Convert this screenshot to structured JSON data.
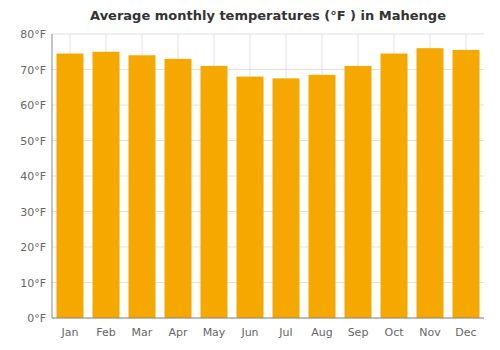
{
  "chart_data": {
    "type": "bar",
    "title": "Average monthly temperatures (°F ) in Mahenge",
    "categories": [
      "Jan",
      "Feb",
      "Mar",
      "Apr",
      "May",
      "Jun",
      "Jul",
      "Aug",
      "Sep",
      "Oct",
      "Nov",
      "Dec"
    ],
    "values": [
      74.5,
      75.0,
      74.0,
      73.0,
      71.0,
      68.0,
      67.5,
      68.5,
      71.0,
      74.5,
      76.0,
      75.5
    ],
    "color": "#F5A800",
    "ylim": [
      0,
      80
    ],
    "yticks": [
      {
        "value": 0,
        "label": "0°F"
      },
      {
        "value": 10,
        "label": "10°F"
      },
      {
        "value": 20,
        "label": "20°F"
      },
      {
        "value": 30,
        "label": "30°F"
      },
      {
        "value": 40,
        "label": "40°F"
      },
      {
        "value": 50,
        "label": "50°F"
      },
      {
        "value": 60,
        "label": "60°F"
      },
      {
        "value": 70,
        "label": "70°F"
      },
      {
        "value": 80,
        "label": "80°F"
      }
    ],
    "grid": true
  }
}
